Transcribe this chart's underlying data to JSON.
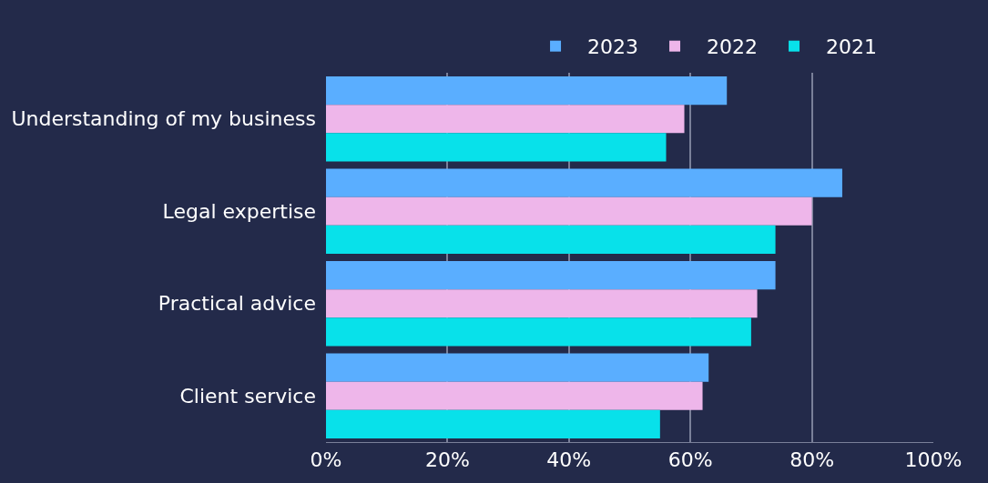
{
  "chart_data": {
    "type": "bar",
    "orientation": "horizontal",
    "categories": [
      "Understanding of my business",
      "Legal expertise",
      "Practical advice",
      "Client service"
    ],
    "series": [
      {
        "name": "2023",
        "color": "#5aaeff",
        "values": [
          66,
          85,
          74,
          63
        ]
      },
      {
        "name": "2022",
        "color": "#eeb6ea",
        "values": [
          59,
          80,
          71,
          62
        ]
      },
      {
        "name": "2021",
        "color": "#08e1ea",
        "values": [
          56,
          74,
          70,
          55
        ]
      }
    ],
    "xlim": [
      0,
      100
    ],
    "xticks": [
      {
        "value": 0,
        "label": "0%"
      },
      {
        "value": 20,
        "label": "20%"
      },
      {
        "value": 40,
        "label": "40%"
      },
      {
        "value": 60,
        "label": "60%"
      },
      {
        "value": 80,
        "label": "80%"
      },
      {
        "value": 100,
        "label": "100%"
      }
    ],
    "grid": "x",
    "legend": "top"
  }
}
